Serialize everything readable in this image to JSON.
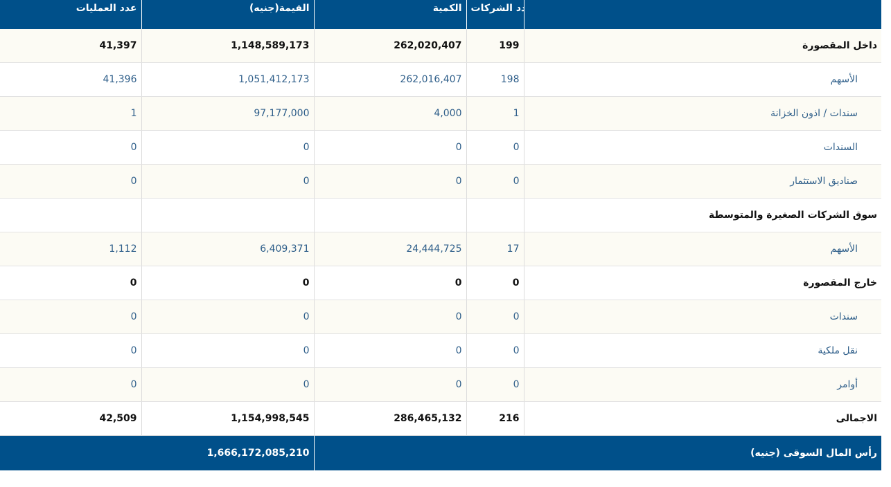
{
  "headers": {
    "operations": "عدد العمليات",
    "value": "القيمة(جنيه)",
    "quantity": "الكمية",
    "companies": "عدد الشركات"
  },
  "rows": [
    {
      "label": "داخل المقصورة",
      "companies": "199",
      "quantity": "262,020,407",
      "value": "1,148,589,173",
      "operations": "41,397"
    },
    {
      "label": "الأسهم",
      "companies": "198",
      "quantity": "262,016,407",
      "value": "1,051,412,173",
      "operations": "41,396"
    },
    {
      "label": "سندات / اذون الخزانة",
      "companies": "1",
      "quantity": "4,000",
      "value": "97,177,000",
      "operations": "1"
    },
    {
      "label": "السندات",
      "companies": "0",
      "quantity": "0",
      "value": "0",
      "operations": "0"
    },
    {
      "label": "صناديق الاستثمار",
      "companies": "0",
      "quantity": "0",
      "value": "0",
      "operations": "0"
    },
    {
      "label": "سوق الشركات الصغيرة والمتوسطة",
      "companies": "",
      "quantity": "",
      "value": "",
      "operations": ""
    },
    {
      "label": "الأسهم",
      "companies": "17",
      "quantity": "24,444,725",
      "value": "6,409,371",
      "operations": "1,112"
    },
    {
      "label": "خارج المقصورة",
      "companies": "0",
      "quantity": "0",
      "value": "0",
      "operations": "0"
    },
    {
      "label": "سندات",
      "companies": "0",
      "quantity": "0",
      "value": "0",
      "operations": "0"
    },
    {
      "label": "نقل ملكية",
      "companies": "0",
      "quantity": "0",
      "value": "0",
      "operations": "0"
    },
    {
      "label": "أوامر",
      "companies": "0",
      "quantity": "0",
      "value": "0",
      "operations": "0"
    },
    {
      "label": "الاجمالى",
      "companies": "216",
      "quantity": "286,465,132",
      "value": "1,154,998,545",
      "operations": "42,509"
    }
  ],
  "market_cap": {
    "label": "رأس المال السوقى (جنيه)",
    "value": "1,666,172,085,210"
  }
}
